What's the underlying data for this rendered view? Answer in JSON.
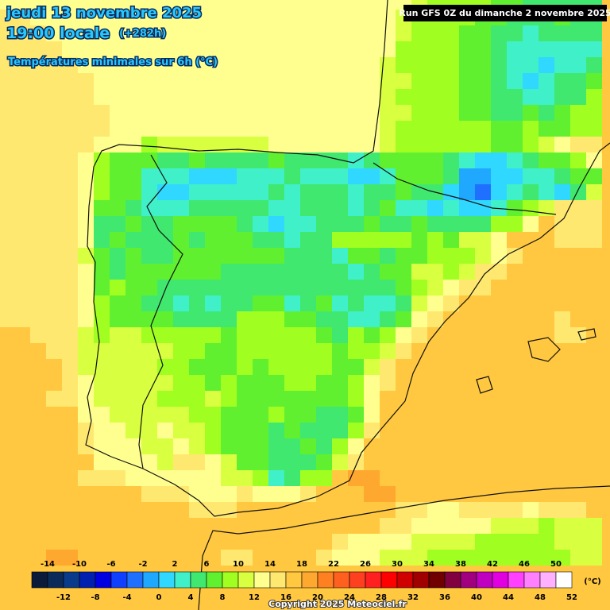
{
  "header": {
    "date": "jeudi 13 novembre 2025",
    "time": "19:00 locale",
    "lead": "(+282h)",
    "subtitle": "Températures minimales sur 6h (°C)",
    "run": "Run GFS 0Z du dimanche 2 novembre 2025"
  },
  "footer": {
    "copyright": "Copyright 2025 Meteociel.fr"
  },
  "colorbar": {
    "unit": "(°C)",
    "ticks": [
      -14,
      -12,
      -10,
      -8,
      -6,
      -4,
      -2,
      0,
      2,
      4,
      6,
      8,
      10,
      12,
      14,
      16,
      18,
      20,
      22,
      24,
      26,
      28,
      30,
      32,
      34,
      36,
      38,
      40,
      42,
      44,
      46,
      48,
      50,
      52
    ],
    "colors": [
      "#0a1a3a",
      "#0a2a5a",
      "#0a3a8a",
      "#0020b0",
      "#0000e0",
      "#1040ff",
      "#2070ff",
      "#20a8ff",
      "#30d8ff",
      "#40f0c8",
      "#40e870",
      "#60f030",
      "#a0ff20",
      "#d8ff40",
      "#ffff90",
      "#ffe870",
      "#ffc840",
      "#ffa830",
      "#ff8020",
      "#ff6020",
      "#ff4020",
      "#ff2020",
      "#ff0000",
      "#d00000",
      "#a00000",
      "#700000",
      "#800040",
      "#a00080",
      "#c000c0",
      "#e000e0",
      "#ff40ff",
      "#ff80ff",
      "#ffb0ff",
      "#ffffff"
    ]
  },
  "grid": {
    "rows": [
      [
        13,
        13,
        13,
        13,
        13,
        13,
        13,
        13,
        13,
        13,
        13,
        13,
        13,
        13,
        13,
        13,
        13,
        13,
        13,
        13,
        13,
        13,
        13,
        12,
        12,
        12,
        10,
        9,
        8,
        8,
        8,
        7,
        6,
        5,
        4,
        5,
        5,
        5
      ],
      [
        14,
        14,
        13,
        13,
        13,
        13,
        13,
        13,
        13,
        13,
        13,
        13,
        13,
        13,
        13,
        13,
        13,
        13,
        13,
        13,
        13,
        13,
        13,
        12,
        12,
        10,
        9,
        8,
        8,
        8,
        7,
        6,
        5,
        4,
        5,
        6,
        5,
        4
      ],
      [
        14,
        14,
        14,
        13,
        13,
        13,
        13,
        13,
        13,
        13,
        13,
        13,
        13,
        13,
        13,
        13,
        13,
        13,
        13,
        13,
        13,
        13,
        13,
        12,
        12,
        10,
        9,
        8,
        8,
        7,
        6,
        5,
        4,
        3,
        5,
        5,
        4,
        4
      ],
      [
        14,
        14,
        14,
        14,
        13,
        13,
        13,
        13,
        13,
        13,
        13,
        13,
        13,
        13,
        13,
        13,
        13,
        13,
        13,
        13,
        13,
        13,
        13,
        12,
        12,
        9,
        9,
        8,
        8,
        7,
        6,
        5,
        3,
        3,
        3,
        3,
        3,
        3
      ],
      [
        14,
        14,
        14,
        14,
        14,
        13,
        13,
        13,
        13,
        13,
        13,
        13,
        13,
        13,
        13,
        13,
        13,
        13,
        13,
        13,
        13,
        13,
        13,
        12,
        11,
        9,
        9,
        8,
        8,
        7,
        6,
        5,
        3,
        2,
        1,
        3,
        3,
        4
      ],
      [
        14,
        14,
        14,
        14,
        14,
        14,
        13,
        13,
        13,
        13,
        13,
        13,
        13,
        13,
        13,
        13,
        13,
        13,
        13,
        13,
        13,
        13,
        13,
        12,
        11,
        10,
        9,
        8,
        8,
        7,
        6,
        5,
        3,
        1,
        2,
        4,
        4,
        6
      ],
      [
        14,
        14,
        14,
        14,
        14,
        14,
        13,
        13,
        13,
        13,
        13,
        13,
        13,
        13,
        13,
        13,
        13,
        13,
        13,
        13,
        13,
        13,
        13,
        12,
        11,
        9,
        9,
        8,
        8,
        7,
        6,
        5,
        4,
        3,
        3,
        4,
        4,
        8
      ],
      [
        14,
        14,
        14,
        14,
        14,
        14,
        14,
        13,
        13,
        13,
        13,
        13,
        13,
        13,
        13,
        13,
        13,
        13,
        13,
        13,
        13,
        13,
        13,
        12,
        11,
        10,
        9,
        8,
        8,
        7,
        6,
        4,
        4,
        7,
        5,
        7,
        8,
        9
      ],
      [
        14,
        14,
        14,
        14,
        14,
        14,
        14,
        13,
        13,
        13,
        13,
        13,
        13,
        13,
        13,
        13,
        13,
        13,
        13,
        13,
        13,
        12,
        12,
        12,
        11,
        9,
        8,
        8,
        8,
        8,
        9,
        7,
        7,
        8,
        7,
        7,
        8,
        9
      ],
      [
        14,
        14,
        14,
        14,
        14,
        14,
        13,
        13,
        12,
        9,
        10,
        10,
        10,
        10,
        11,
        11,
        11,
        12,
        12,
        12,
        12,
        12,
        12,
        12,
        10,
        8,
        8,
        8,
        9,
        9,
        9,
        7,
        6,
        8,
        10,
        13,
        15,
        15
      ],
      [
        14,
        14,
        14,
        14,
        14,
        12,
        9,
        7,
        7,
        6,
        5,
        5,
        6,
        5,
        4,
        4,
        5,
        6,
        5,
        5,
        4,
        4,
        3,
        5,
        7,
        7,
        6,
        6,
        4,
        2,
        1,
        1,
        2,
        5,
        6,
        7,
        9,
        12
      ],
      [
        14,
        14,
        14,
        14,
        14,
        12,
        8,
        7,
        6,
        3,
        2,
        3,
        1,
        1,
        1,
        2,
        3,
        3,
        4,
        2,
        3,
        3,
        1,
        1,
        2,
        6,
        6,
        6,
        5,
        -1,
        -2,
        1,
        1,
        2,
        3,
        5,
        6,
        7
      ],
      [
        14,
        14,
        14,
        14,
        14,
        12,
        8,
        7,
        6,
        3,
        1,
        1,
        2,
        2,
        2,
        2,
        3,
        4,
        3,
        5,
        5,
        4,
        3,
        5,
        5,
        6,
        4,
        4,
        1,
        -2,
        -3,
        1,
        2,
        5,
        3,
        1,
        5,
        10
      ],
      [
        14,
        14,
        14,
        14,
        14,
        12,
        6,
        7,
        5,
        3,
        2,
        3,
        4,
        5,
        5,
        5,
        5,
        3,
        3,
        4,
        5,
        4,
        3,
        4,
        6,
        3,
        2,
        1,
        2,
        1,
        0,
        3,
        6,
        8,
        10,
        15,
        15,
        15
      ],
      [
        14,
        14,
        14,
        14,
        14,
        13,
        5,
        5,
        6,
        5,
        4,
        6,
        6,
        6,
        6,
        5,
        3,
        1,
        3,
        2,
        4,
        5,
        4,
        6,
        4,
        4,
        6,
        5,
        5,
        5,
        5,
        8,
        9,
        12,
        16,
        15,
        15,
        15
      ],
      [
        14,
        14,
        14,
        14,
        14,
        13,
        5,
        6,
        5,
        5,
        5,
        6,
        5,
        6,
        7,
        6,
        5,
        4,
        2,
        4,
        5,
        8,
        9,
        8,
        8,
        8,
        7,
        9,
        7,
        10,
        11,
        13,
        16,
        16,
        16,
        15,
        15,
        15
      ],
      [
        15,
        15,
        14,
        14,
        14,
        10,
        7,
        5,
        6,
        5,
        5,
        6,
        7,
        7,
        7,
        7,
        6,
        6,
        4,
        5,
        4,
        3,
        7,
        7,
        5,
        7,
        7,
        9,
        8,
        8,
        10,
        12,
        14,
        16,
        16,
        16,
        16,
        16
      ],
      [
        15,
        15,
        15,
        15,
        15,
        12,
        7,
        5,
        6,
        7,
        6,
        6,
        6,
        7,
        5,
        5,
        5,
        4,
        5,
        4,
        5,
        4,
        3,
        5,
        6,
        7,
        10,
        10,
        9,
        11,
        14,
        14,
        16,
        16,
        16,
        16,
        16,
        16
      ],
      [
        15,
        15,
        15,
        15,
        15,
        12,
        7,
        8,
        6,
        6,
        5,
        5,
        4,
        5,
        5,
        5,
        5,
        4,
        5,
        5,
        5,
        4,
        5,
        4,
        5,
        6,
        9,
        11,
        13,
        14,
        15,
        16,
        16,
        16,
        16,
        16,
        16,
        16
      ],
      [
        15,
        15,
        15,
        15,
        15,
        12,
        8,
        7,
        6,
        5,
        4,
        3,
        5,
        3,
        5,
        5,
        6,
        6,
        3,
        5,
        6,
        3,
        4,
        2,
        3,
        5,
        10,
        13,
        15,
        16,
        16,
        16,
        16,
        16,
        16,
        16,
        16,
        16
      ],
      [
        15,
        15,
        15,
        15,
        14,
        12,
        9,
        6,
        6,
        6,
        6,
        5,
        5,
        5,
        5,
        9,
        9,
        9,
        6,
        6,
        5,
        4,
        3,
        3,
        4,
        7,
        12,
        15,
        16,
        16,
        16,
        16,
        16,
        16,
        16,
        15,
        16,
        16
      ],
      [
        16,
        16,
        15,
        15,
        15,
        11,
        9,
        10,
        10,
        9,
        9,
        9,
        8,
        8,
        7,
        8,
        9,
        8,
        9,
        8,
        7,
        5,
        8,
        7,
        9,
        12,
        15,
        17,
        17,
        17,
        16,
        16,
        16,
        16,
        16,
        15,
        15,
        16
      ],
      [
        16,
        16,
        16,
        15,
        15,
        11,
        10,
        10,
        10,
        10,
        10,
        9,
        8,
        7,
        7,
        8,
        8,
        9,
        8,
        8,
        8,
        7,
        8,
        8,
        11,
        15,
        17,
        17,
        17,
        17,
        17,
        16,
        16,
        16,
        16,
        16,
        16,
        16
      ],
      [
        16,
        16,
        16,
        16,
        15,
        11,
        10,
        10,
        10,
        10,
        9,
        8,
        7,
        7,
        7,
        8,
        7,
        8,
        8,
        9,
        8,
        7,
        7,
        10,
        14,
        16,
        17,
        17,
        17,
        17,
        17,
        17,
        16,
        16,
        16,
        16,
        16,
        16
      ],
      [
        16,
        16,
        16,
        16,
        15,
        12,
        11,
        11,
        11,
        10,
        10,
        9,
        8,
        7,
        8,
        7,
        7,
        6,
        8,
        8,
        7,
        7,
        8,
        12,
        15,
        16,
        17,
        17,
        17,
        17,
        16,
        16,
        17,
        16,
        16,
        16,
        16,
        16
      ],
      [
        16,
        16,
        16,
        15,
        15,
        12,
        11,
        11,
        11,
        10,
        9,
        9,
        9,
        10,
        8,
        7,
        6,
        7,
        7,
        7,
        6,
        6,
        9,
        13,
        16,
        16,
        16,
        16,
        16,
        16,
        16,
        16,
        16,
        16,
        16,
        16,
        16,
        16
      ],
      [
        16,
        16,
        16,
        16,
        16,
        13,
        12,
        11,
        10,
        10,
        10,
        11,
        9,
        9,
        7,
        7,
        7,
        8,
        6,
        6,
        5,
        4,
        7,
        12,
        16,
        16,
        16,
        16,
        16,
        16,
        16,
        16,
        16,
        16,
        16,
        16,
        16,
        16
      ],
      [
        16,
        16,
        16,
        16,
        16,
        14,
        12,
        12,
        11,
        11,
        12,
        11,
        10,
        9,
        7,
        7,
        6,
        5,
        6,
        4,
        4,
        5,
        9,
        14,
        16,
        16,
        16,
        16,
        16,
        16,
        16,
        16,
        16,
        16,
        16,
        16,
        16,
        16
      ],
      [
        16,
        16,
        16,
        16,
        16,
        15,
        13,
        13,
        12,
        11,
        11,
        12,
        10,
        9,
        7,
        6,
        6,
        5,
        5,
        6,
        4,
        8,
        13,
        16,
        17,
        17,
        17,
        17,
        17,
        17,
        17,
        16,
        16,
        16,
        16,
        16,
        16,
        16
      ],
      [
        16,
        16,
        16,
        16,
        16,
        16,
        13,
        13,
        12,
        12,
        11,
        14,
        14,
        13,
        11,
        7,
        7,
        5,
        5,
        5,
        6,
        10,
        15,
        17,
        17,
        17,
        17,
        17,
        17,
        17,
        17,
        17,
        17,
        17,
        16,
        16,
        16,
        16
      ],
      [
        17,
        17,
        16,
        16,
        16,
        15,
        15,
        15,
        13,
        13,
        12,
        13,
        13,
        12,
        11,
        10,
        8,
        2,
        5,
        9,
        9,
        16,
        18,
        18,
        17,
        17,
        17,
        17,
        17,
        17,
        17,
        17,
        17,
        17,
        17,
        17,
        16,
        16
      ],
      [
        17,
        17,
        17,
        17,
        17,
        16,
        16,
        16,
        16,
        15,
        15,
        14,
        12,
        12,
        13,
        14,
        12,
        13,
        13,
        15,
        16,
        17,
        17,
        18,
        18,
        17,
        17,
        17,
        17,
        17,
        17,
        17,
        17,
        17,
        17,
        17,
        17,
        17
      ],
      [
        17,
        17,
        17,
        17,
        17,
        17,
        17,
        17,
        17,
        16,
        16,
        16,
        14,
        14,
        15,
        17,
        17,
        17,
        17,
        17,
        17,
        17,
        17,
        17,
        17,
        15,
        14,
        13,
        13,
        15,
        15,
        14,
        14,
        13,
        14,
        14,
        15,
        16
      ],
      [
        17,
        17,
        17,
        17,
        17,
        17,
        17,
        17,
        17,
        17,
        17,
        17,
        16,
        16,
        17,
        17,
        17,
        17,
        17,
        17,
        17,
        17,
        16,
        16,
        15,
        14,
        13,
        12,
        12,
        12,
        12,
        11,
        10,
        10,
        9,
        10,
        10,
        11
      ],
      [
        17,
        17,
        17,
        17,
        17,
        17,
        17,
        17,
        17,
        17,
        17,
        17,
        17,
        16,
        16,
        17,
        17,
        17,
        17,
        17,
        16,
        14,
        13,
        13,
        12,
        12,
        11,
        11,
        10,
        10,
        9,
        9,
        9,
        9,
        9,
        10,
        10,
        10
      ],
      [
        17,
        17,
        17,
        18,
        18,
        17,
        17,
        17,
        17,
        17,
        17,
        17,
        17,
        16,
        15,
        15,
        17,
        17,
        17,
        16,
        15,
        13,
        12,
        12,
        11,
        10,
        10,
        9,
        9,
        9,
        9,
        9,
        9,
        9,
        9,
        9,
        10,
        10
      ]
    ]
  }
}
